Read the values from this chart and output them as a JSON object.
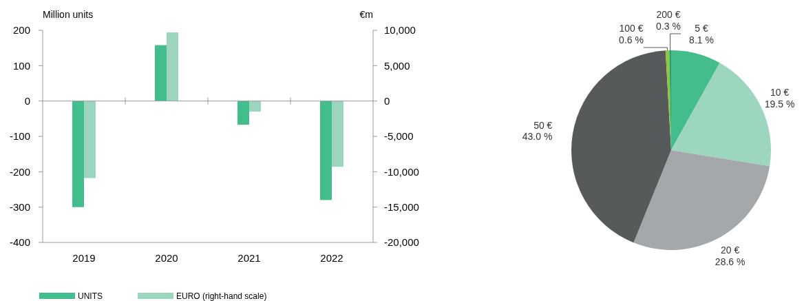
{
  "chart_data": [
    {
      "type": "bar",
      "categories": [
        "2019",
        "2020",
        "2021",
        "2022"
      ],
      "series": [
        {
          "name": "UNITS",
          "color": "#44bd8c",
          "values": [
            -300,
            158,
            -67,
            -280
          ]
        },
        {
          "name": "EURO (right-hand scale)",
          "color": "#9dd6bf",
          "axis": "y2",
          "values": [
            -10900,
            9700,
            -1500,
            -9300
          ]
        }
      ],
      "ylabel": "Million units",
      "y2label": "€m",
      "ylim": [
        -400,
        200
      ],
      "yticks": [
        -400,
        -300,
        -200,
        -100,
        0,
        100,
        200
      ],
      "y2lim": [
        -20000,
        10000
      ],
      "y2ticks": [
        {
          "value": -20000,
          "label": "-20,000"
        },
        {
          "value": -15000,
          "label": "-15,000"
        },
        {
          "value": -10000,
          "label": "-10,000"
        },
        {
          "value": -5000,
          "label": "-5,000"
        },
        0,
        {
          "value": 5000,
          "label": "5,000"
        },
        {
          "value": 10000,
          "label": "10,000"
        }
      ],
      "legend": "bottom"
    },
    {
      "type": "pie",
      "categories": [
        "5 €",
        "10 €",
        "20 €",
        "50 €",
        "100 €",
        "200 €"
      ],
      "values": [
        8.1,
        19.5,
        28.6,
        43.0,
        0.6,
        0.3
      ],
      "value_labels": [
        "8.1 %",
        "19.5 %",
        "28.6 %",
        "43.0 %",
        "0.6 %",
        "0.3 %"
      ],
      "colors": [
        "#44bd8c",
        "#9dd6bf",
        "#a5a8aa",
        "#575a5a",
        "#8dc63f",
        "#2e9e6a"
      ]
    }
  ]
}
